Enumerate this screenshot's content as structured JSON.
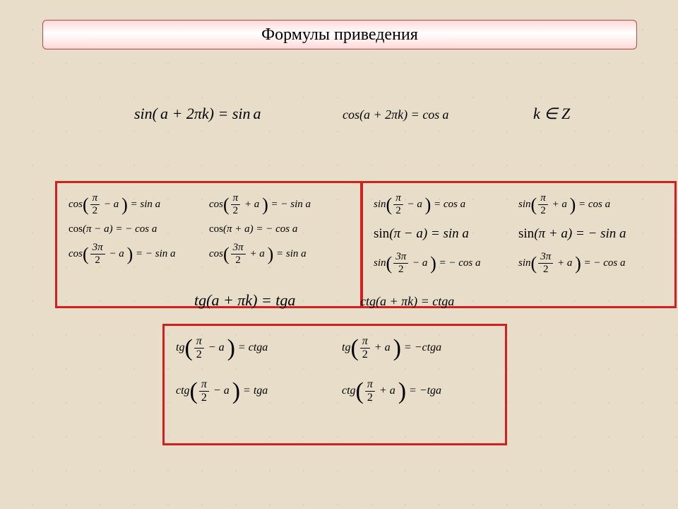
{
  "colors": {
    "bg": "#e8ddc8",
    "box_border": "#d21f1f",
    "title_border": "#b84a4a",
    "title_grad_top": "#ffd8d8",
    "title_grad_mid": "#ffffff",
    "grid_dot": "#c9bfa8"
  },
  "title": "Формулы приведения",
  "top": {
    "sin": "sin( a + 2πk) = sin a",
    "cos": "cos(a + 2πk) = cos a",
    "k": "k ∈ Z"
  },
  "mid": {
    "tg": "tg(a + πk) = tga",
    "ctg": "ctg(a + πk) = ctga"
  },
  "box1": {
    "left": [
      {
        "fn": "cos",
        "num": "π",
        "den": "2",
        "op": "− a",
        "rhs": "= sin a"
      },
      {
        "fn": "cos",
        "plain": "(π − a) = − cos a"
      },
      {
        "fn": "cos",
        "num": "3π",
        "den": "2",
        "op": "− a",
        "rhs": "= − sin a"
      }
    ],
    "right": [
      {
        "fn": "cos",
        "num": "π",
        "den": "2",
        "op": "+ a",
        "rhs": "= − sin a"
      },
      {
        "fn": "cos",
        "plain": "(π + a) = − cos a"
      },
      {
        "fn": "cos",
        "num": "3π",
        "den": "2",
        "op": "+ a",
        "rhs": "= sin a"
      }
    ]
  },
  "box2": {
    "left": [
      {
        "fn": "sin",
        "num": "π",
        "den": "2",
        "op": "− a",
        "rhs": "= cos a"
      },
      {
        "fn": "sin",
        "plain": "(π − a) = sin a",
        "big": true
      },
      {
        "fn": "sin",
        "num": "3π",
        "den": "2",
        "op": "− a",
        "rhs": "= − cos a"
      }
    ],
    "right": [
      {
        "fn": "sin",
        "num": "π",
        "den": "2",
        "op": "+ a",
        "rhs": "= cos a"
      },
      {
        "fn": "sin",
        "plain": "(π + a) = − sin a",
        "big": true
      },
      {
        "fn": "sin",
        "num": "3π",
        "den": "2",
        "op": "+ a",
        "rhs": "= − cos a"
      }
    ]
  },
  "box3": {
    "left": [
      {
        "fn": "tg",
        "num": "π",
        "den": "2",
        "op": "− a",
        "rhs": "= ctga"
      },
      {
        "fn": "ctg",
        "num": "π",
        "den": "2",
        "op": "− a",
        "rhs": "= tga"
      }
    ],
    "right": [
      {
        "fn": "tg",
        "num": "π",
        "den": "2",
        "op": "+ a",
        "rhs": "= −ctga"
      },
      {
        "fn": "ctg",
        "num": "π",
        "den": "2",
        "op": "+ a",
        "rhs": "= −tga"
      }
    ]
  }
}
